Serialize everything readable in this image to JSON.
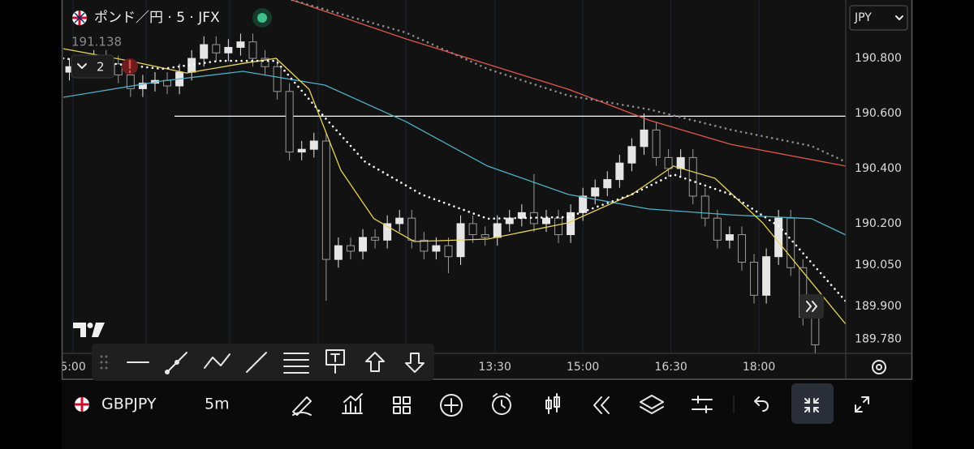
{
  "header": {
    "title": "ポンド／円 · 5 · JFX",
    "price": "191.138",
    "indicator_count": "2",
    "currency": "JPY"
  },
  "chart_data": {
    "type": "candlestick",
    "up_color": "#e6e6e6",
    "down_color": "#9a9a9a",
    "open": [
      190.75,
      190.77,
      190.78,
      190.8,
      190.78,
      190.74,
      190.69,
      190.71,
      190.72,
      190.7,
      190.75,
      190.8,
      190.85,
      190.82,
      190.84,
      190.86,
      190.8,
      190.77,
      190.68,
      190.46,
      190.47,
      190.5,
      190.07,
      190.12,
      190.1,
      190.15,
      190.14,
      190.2,
      190.22,
      190.14,
      190.1,
      190.12,
      190.08,
      190.2,
      190.16,
      190.15,
      190.2,
      190.22,
      190.24,
      190.2,
      190.22,
      190.16,
      190.24,
      190.3,
      190.33,
      190.36,
      190.42,
      190.48,
      190.54,
      190.44,
      190.4,
      190.44,
      190.3,
      190.22,
      190.14,
      190.16,
      190.06,
      189.94,
      190.08,
      190.22,
      190.04,
      189.86
    ],
    "high": [
      190.8,
      190.81,
      190.83,
      190.83,
      190.81,
      190.77,
      190.74,
      190.75,
      190.75,
      190.78,
      190.83,
      190.88,
      190.88,
      190.87,
      190.89,
      190.89,
      190.83,
      190.8,
      190.71,
      190.5,
      190.53,
      190.53,
      190.15,
      190.15,
      190.18,
      190.18,
      190.23,
      190.25,
      190.25,
      190.17,
      190.15,
      190.15,
      190.23,
      190.23,
      190.19,
      190.23,
      190.25,
      190.27,
      190.38,
      190.25,
      190.25,
      190.27,
      190.33,
      190.36,
      190.39,
      190.45,
      190.51,
      190.6,
      190.57,
      190.47,
      190.47,
      190.47,
      190.33,
      190.25,
      190.19,
      190.19,
      190.09,
      190.11,
      190.25,
      190.25,
      190.07,
      189.89
    ],
    "low": [
      190.72,
      190.74,
      190.75,
      190.75,
      190.71,
      190.66,
      190.66,
      190.68,
      190.67,
      190.67,
      190.72,
      190.77,
      190.79,
      190.79,
      190.81,
      190.77,
      190.74,
      190.65,
      190.43,
      190.43,
      190.44,
      189.92,
      190.04,
      190.07,
      190.07,
      190.11,
      190.11,
      190.17,
      190.11,
      190.07,
      190.07,
      190.02,
      190.05,
      190.13,
      190.12,
      190.12,
      190.17,
      190.19,
      190.17,
      190.17,
      190.13,
      190.13,
      190.21,
      190.27,
      190.3,
      190.33,
      190.39,
      190.45,
      190.41,
      190.37,
      190.37,
      190.27,
      190.19,
      190.11,
      190.11,
      190.03,
      189.91,
      189.91,
      190.05,
      190.01,
      189.83,
      189.73
    ],
    "close": [
      190.77,
      190.78,
      190.8,
      190.78,
      190.74,
      190.69,
      190.71,
      190.72,
      190.7,
      190.75,
      190.8,
      190.85,
      190.82,
      190.84,
      190.86,
      190.8,
      190.77,
      190.68,
      190.46,
      190.47,
      190.5,
      190.07,
      190.12,
      190.1,
      190.15,
      190.14,
      190.2,
      190.22,
      190.14,
      190.1,
      190.12,
      190.08,
      190.2,
      190.16,
      190.15,
      190.2,
      190.22,
      190.24,
      190.2,
      190.22,
      190.16,
      190.24,
      190.3,
      190.33,
      190.36,
      190.42,
      190.48,
      190.54,
      190.44,
      190.4,
      190.44,
      190.3,
      190.22,
      190.14,
      190.16,
      190.06,
      189.94,
      190.08,
      190.22,
      190.04,
      189.86,
      189.76
    ],
    "lines": [
      {
        "color": "#e0574a",
        "style": "solid",
        "x": [
          18.7,
          28.0,
          41.3,
          47.9,
          54.6,
          64
        ],
        "values": [
          191.012,
          190.871,
          190.688,
          190.576,
          190.488,
          190.409
        ]
      },
      {
        "color": "#8c8c8c",
        "style": "dotted",
        "x": [
          18.7,
          28.0,
          34.7,
          41.3,
          47.9,
          54.6,
          61.2,
          64
        ],
        "values": [
          191.012,
          190.894,
          190.762,
          190.665,
          190.615,
          190.541,
          190.482,
          190.424
        ]
      },
      {
        "color": "#4fb0c6",
        "style": "solid",
        "x": [
          0,
          8.1,
          14.7,
          21.4,
          28.0,
          34.7,
          41.3,
          47.9,
          54.6,
          61.2,
          64
        ],
        "values": [
          190.659,
          190.718,
          190.753,
          190.703,
          190.571,
          190.409,
          190.306,
          190.253,
          190.232,
          190.218,
          190.159
        ]
      },
      {
        "color": "#e8d45a",
        "style": "solid",
        "x": [
          0,
          5.4,
          10.1,
          14.7,
          17.4,
          20.1,
          22.7,
          25.4,
          28.7,
          34.7,
          41.3,
          46.5,
          49.9,
          53.3,
          57.2,
          64
        ],
        "values": [
          190.835,
          190.791,
          190.747,
          190.782,
          190.8,
          190.688,
          190.394,
          190.218,
          190.135,
          190.144,
          190.203,
          190.306,
          190.409,
          190.365,
          190.203,
          189.835
        ]
      },
      {
        "color": "#ffffff",
        "style": "dotted",
        "x": [
          0,
          8.1,
          12.7,
          17.4,
          21.4,
          24.7,
          29.3,
          34.7,
          41.3,
          46.5,
          49.9,
          54.6,
          58.6,
          64
        ],
        "values": [
          190.8,
          190.762,
          190.791,
          190.791,
          190.585,
          190.424,
          190.306,
          190.218,
          190.224,
          190.306,
          190.379,
          190.306,
          190.188,
          189.918
        ]
      }
    ],
    "hline": {
      "value": 190.59,
      "x_start": 9.1,
      "color": "#ffffff"
    },
    "xlim": [
      0,
      64
    ],
    "xticks": [
      {
        "value": 0.8,
        "label": "5:00"
      },
      {
        "value": 35.3,
        "label": "13:30"
      },
      {
        "value": 42.5,
        "label": "15:00"
      },
      {
        "value": 49.7,
        "label": "16:30"
      },
      {
        "value": 56.9,
        "label": "18:00"
      }
    ],
    "ylim": [
      189.729,
      191.012
    ],
    "yticks": [
      {
        "value": 190.8,
        "label": "190.800"
      },
      {
        "value": 190.6,
        "label": "190.600"
      },
      {
        "value": 190.4,
        "label": "190.400"
      },
      {
        "value": 190.2,
        "label": "190.200"
      },
      {
        "value": 190.05,
        "label": "190.050"
      },
      {
        "value": 189.9,
        "label": "189.900"
      },
      {
        "value": 189.78,
        "label": "189.780"
      }
    ]
  },
  "footer": {
    "symbol": "GBPJPY",
    "interval": "5m"
  }
}
